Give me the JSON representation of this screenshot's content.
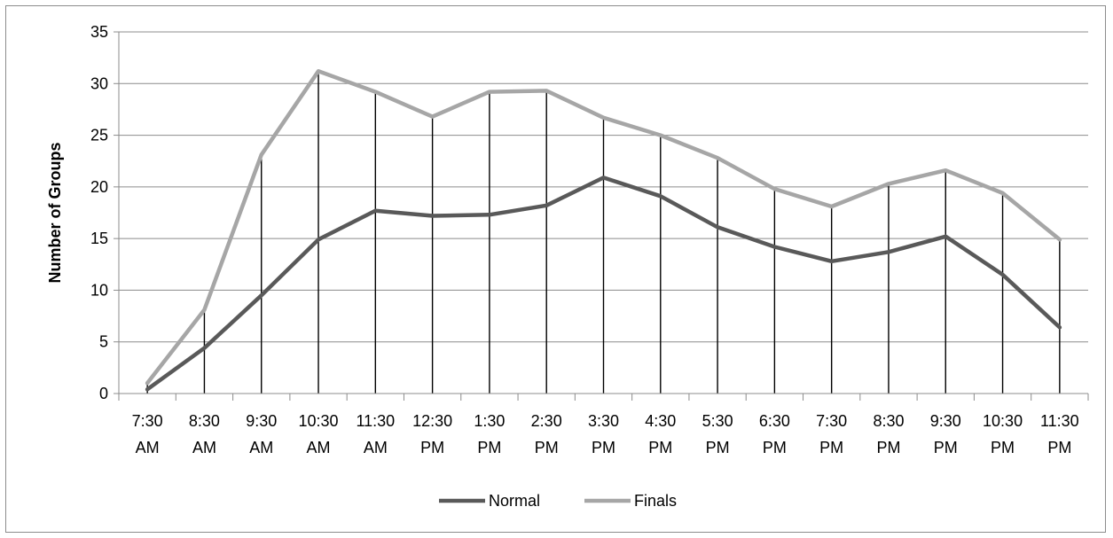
{
  "chart_data": {
    "type": "line",
    "title": "",
    "xlabel": "",
    "ylabel": "Number of Groups",
    "ylim": [
      0,
      35
    ],
    "yticks": [
      "0",
      "5",
      "10",
      "15",
      "20",
      "25",
      "30",
      "35"
    ],
    "categories": [
      [
        "7:30",
        "AM"
      ],
      [
        "8:30",
        "AM"
      ],
      [
        "9:30",
        "AM"
      ],
      [
        "10:30",
        "AM"
      ],
      [
        "11:30",
        "AM"
      ],
      [
        "12:30",
        "PM"
      ],
      [
        "1:30",
        "PM"
      ],
      [
        "2:30",
        "PM"
      ],
      [
        "3:30",
        "PM"
      ],
      [
        "4:30",
        "PM"
      ],
      [
        "5:30",
        "PM"
      ],
      [
        "6:30",
        "PM"
      ],
      [
        "7:30",
        "PM"
      ],
      [
        "8:30",
        "PM"
      ],
      [
        "9:30",
        "PM"
      ],
      [
        "10:30",
        "PM"
      ],
      [
        "11:30",
        "PM"
      ]
    ],
    "series": [
      {
        "name": "Normal",
        "color": "#595959",
        "values": [
          0.4,
          4.4,
          9.5,
          14.9,
          17.7,
          17.2,
          17.3,
          18.2,
          20.9,
          19.1,
          16.1,
          14.2,
          12.8,
          13.7,
          15.2,
          11.5,
          6.4
        ]
      },
      {
        "name": "Finals",
        "color": "#a6a6a6",
        "values": [
          1.0,
          8.1,
          23.1,
          31.2,
          29.2,
          26.8,
          29.2,
          29.3,
          26.7,
          25.0,
          22.8,
          19.8,
          18.1,
          20.3,
          21.6,
          19.4,
          14.9
        ]
      }
    ],
    "grid": true,
    "drop_lines": true,
    "legend_position": "bottom"
  }
}
